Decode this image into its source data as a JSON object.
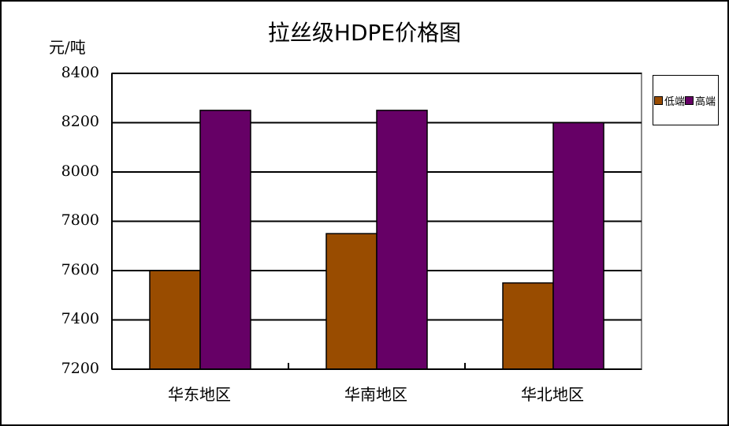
{
  "chart_data": {
    "type": "bar",
    "title": "拉丝级HDPE价格图",
    "xlabel": "",
    "ylabel": "元/吨",
    "categories": [
      "华东地区",
      "华南地区",
      "华北地区"
    ],
    "series": [
      {
        "name": "低端",
        "color": "#994C00",
        "values": [
          7600,
          7750,
          7550
        ]
      },
      {
        "name": "高端",
        "color": "#660066",
        "values": [
          8250,
          8250,
          8200
        ]
      }
    ],
    "ylim": [
      7200,
      8400
    ],
    "yticks": [
      8400,
      8200,
      8000,
      7800,
      7600,
      7400,
      7200
    ],
    "grid": true,
    "legend_position": "right"
  },
  "title": "拉丝级HDPE价格图",
  "unit": "元/吨",
  "yticks": [
    "8400",
    "8200",
    "8000",
    "7800",
    "7600",
    "7400",
    "7200"
  ],
  "categories": [
    "华东地区",
    "华南地区",
    "华北地区"
  ],
  "legend": [
    "低端",
    "高端"
  ]
}
